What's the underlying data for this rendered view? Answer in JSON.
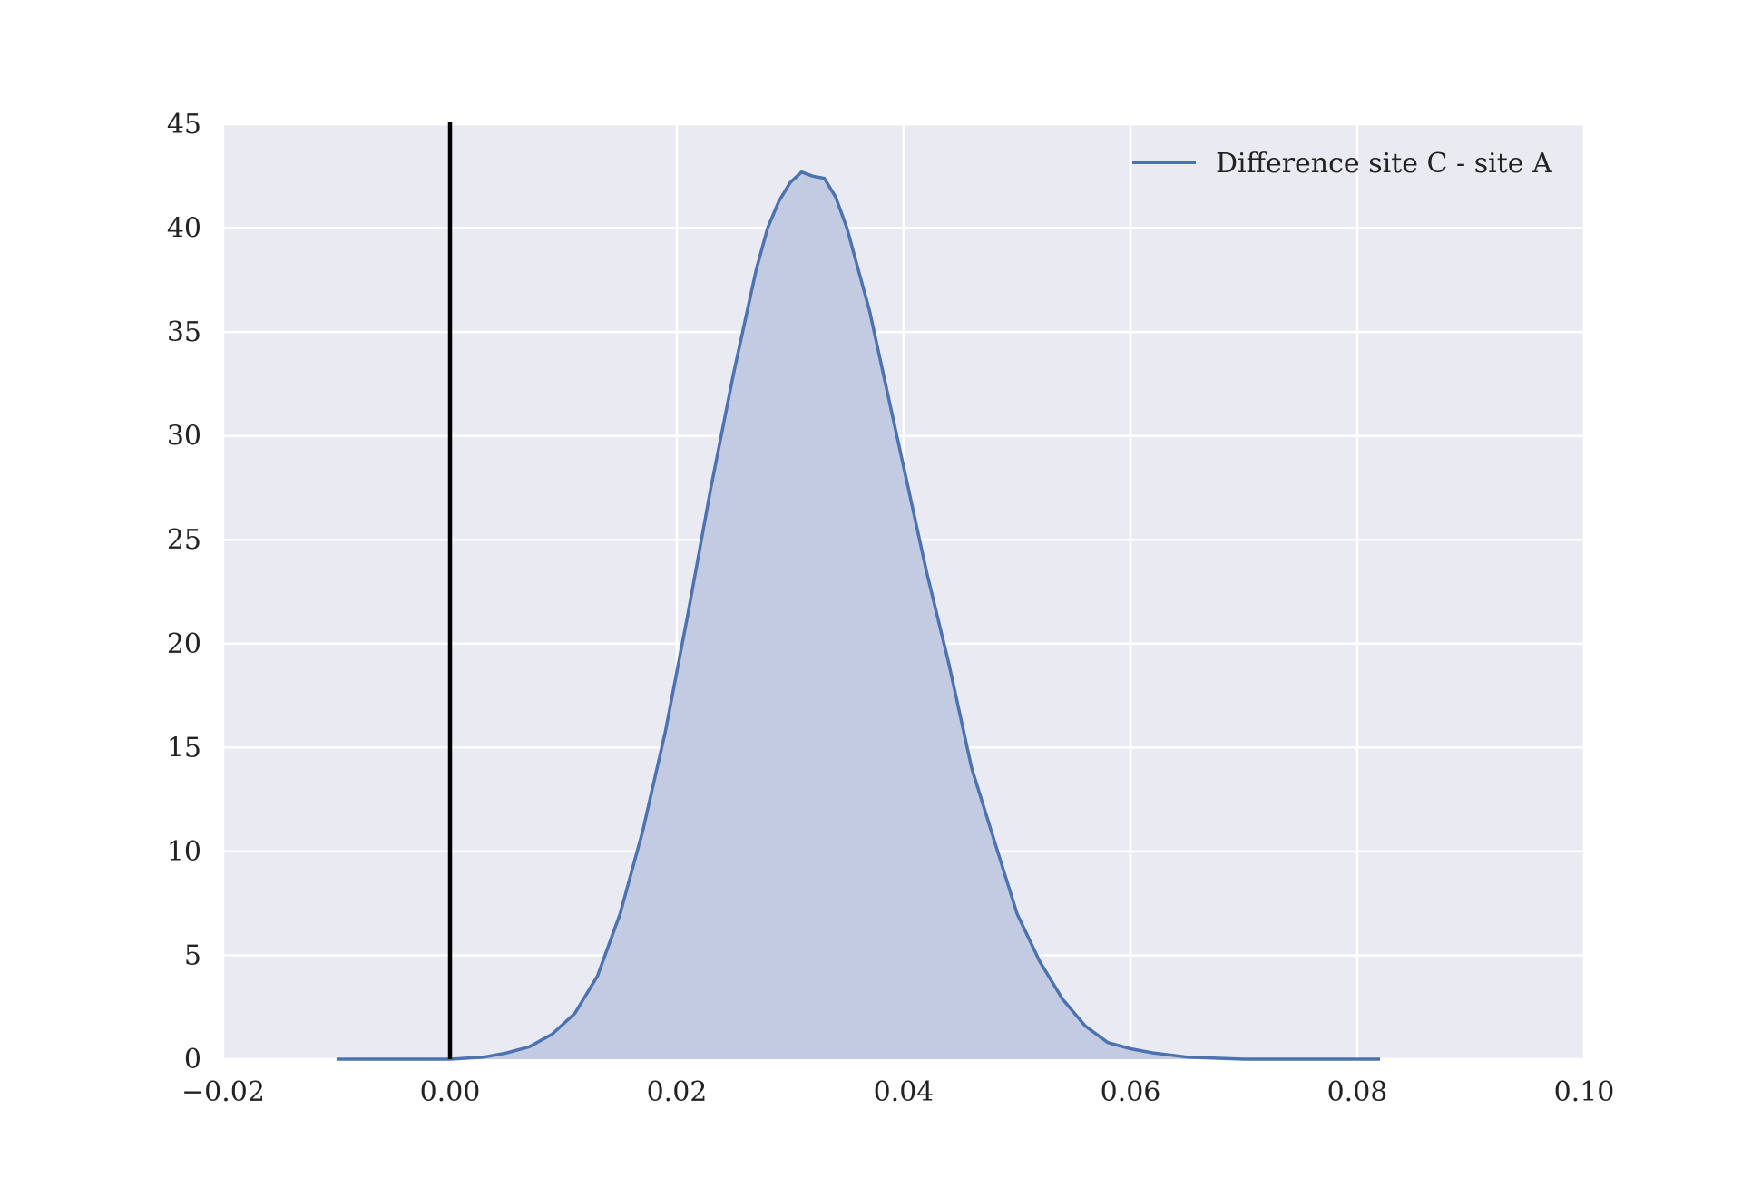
{
  "chart_data": {
    "type": "area",
    "title": "",
    "xlabel": "",
    "ylabel": "",
    "xlim": [
      -0.02,
      0.1
    ],
    "ylim": [
      0,
      45
    ],
    "x_ticks": [
      -0.02,
      0.0,
      0.02,
      0.04,
      0.06,
      0.08,
      0.1
    ],
    "x_tick_labels": [
      "−0.02",
      "0.00",
      "0.02",
      "0.04",
      "0.06",
      "0.08",
      "0.10"
    ],
    "y_ticks": [
      0,
      5,
      10,
      15,
      20,
      25,
      30,
      35,
      40,
      45
    ],
    "y_tick_labels": [
      "0",
      "5",
      "10",
      "15",
      "20",
      "25",
      "30",
      "35",
      "40",
      "45"
    ],
    "grid": true,
    "legend_position": "top-right",
    "vline_x": 0.0,
    "series": [
      {
        "name": "Difference site C - site A",
        "color": "#4c72b0",
        "fill_color": "#c3cbe3",
        "x": [
          -0.01,
          -0.005,
          0.0,
          0.003,
          0.005,
          0.007,
          0.009,
          0.011,
          0.013,
          0.015,
          0.017,
          0.019,
          0.021,
          0.023,
          0.025,
          0.027,
          0.028,
          0.029,
          0.03,
          0.031,
          0.032,
          0.033,
          0.034,
          0.035,
          0.036,
          0.037,
          0.038,
          0.039,
          0.04,
          0.042,
          0.044,
          0.046,
          0.048,
          0.05,
          0.052,
          0.054,
          0.056,
          0.058,
          0.06,
          0.062,
          0.065,
          0.07,
          0.075,
          0.082
        ],
        "y": [
          0.0,
          0.0,
          0.0,
          0.1,
          0.3,
          0.6,
          1.2,
          2.2,
          4.0,
          7.0,
          11.0,
          15.8,
          21.5,
          27.5,
          33.0,
          38.0,
          40.0,
          41.3,
          42.2,
          42.7,
          42.5,
          42.4,
          41.5,
          40.0,
          38.0,
          36.0,
          33.5,
          31.0,
          28.5,
          23.5,
          19.0,
          14.0,
          10.5,
          7.0,
          4.7,
          2.9,
          1.6,
          0.8,
          0.5,
          0.3,
          0.1,
          0.0,
          0.0,
          0.0
        ]
      }
    ]
  }
}
